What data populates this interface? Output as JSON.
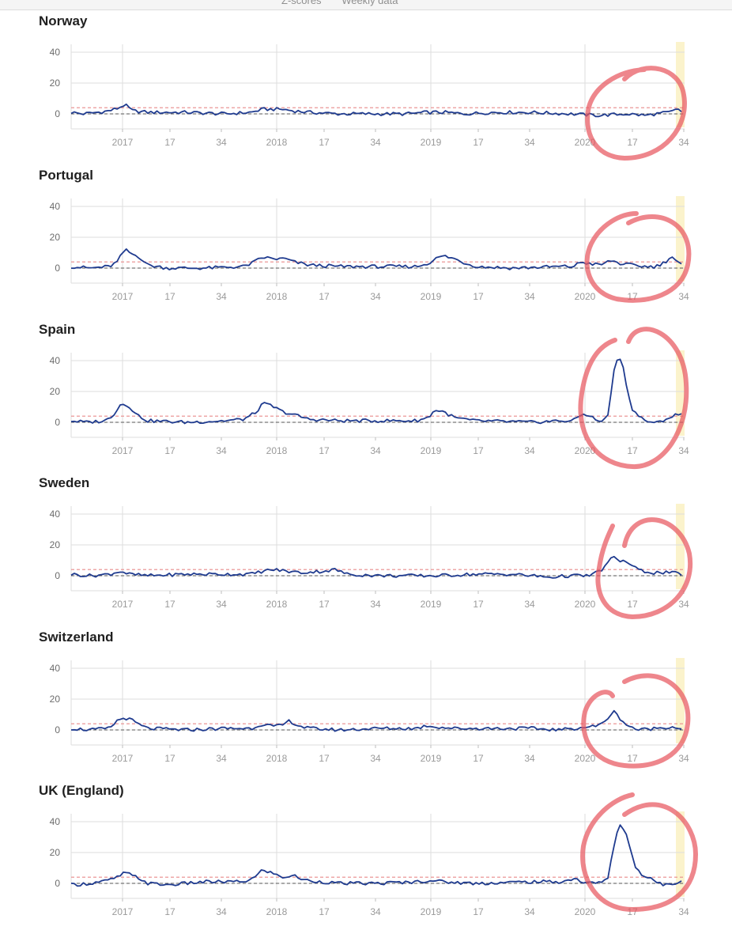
{
  "topbar": {
    "items": [
      "Z-scores",
      "Weekly data"
    ]
  },
  "colors": {
    "series": "#1f3b8f",
    "baseline": "#333333",
    "threshold": "#e88a8a",
    "highlight": "#fbf3cc",
    "grid": "#dedede",
    "annotation": "#e8575f"
  },
  "chart_data": [
    {
      "type": "line",
      "title": "Norway",
      "x_ticks": [
        "2017",
        "17",
        "34",
        "2018",
        "17",
        "34",
        "2019",
        "17",
        "34",
        "2020",
        "17",
        "34"
      ],
      "y_ticks": [
        "0",
        "20",
        "40"
      ],
      "ylim": [
        -10,
        45
      ],
      "threshold": 4,
      "weeks": 190,
      "keypoints": [
        [
          0,
          1
        ],
        [
          6,
          0
        ],
        [
          14,
          1
        ],
        [
          20,
          2
        ],
        [
          24,
          3.5
        ],
        [
          28,
          6
        ],
        [
          32,
          2
        ],
        [
          40,
          1
        ],
        [
          60,
          1
        ],
        [
          80,
          0
        ],
        [
          94,
          1
        ],
        [
          100,
          3
        ],
        [
          110,
          3
        ],
        [
          116,
          2
        ],
        [
          124,
          1
        ],
        [
          140,
          0
        ],
        [
          160,
          0
        ],
        [
          175,
          0
        ],
        [
          186,
          1
        ],
        [
          194,
          1
        ],
        [
          205,
          0
        ],
        [
          220,
          1
        ],
        [
          240,
          1
        ],
        [
          260,
          0
        ],
        [
          275,
          -1
        ],
        [
          290,
          0
        ],
        [
          300,
          -1
        ],
        [
          305,
          0
        ],
        [
          312,
          1
        ],
        [
          317,
          3
        ],
        [
          320,
          0
        ]
      ],
      "annotations": [
        {
          "label": "circle"
        }
      ]
    },
    {
      "type": "line",
      "title": "Portugal",
      "x_ticks": [
        "2017",
        "17",
        "34",
        "2018",
        "17",
        "34",
        "2019",
        "17",
        "34",
        "2020",
        "17",
        "34"
      ],
      "y_ticks": [
        "0",
        "20",
        "40"
      ],
      "ylim": [
        -10,
        45
      ],
      "threshold": 4,
      "weeks": 190,
      "keypoints": [
        [
          0,
          1
        ],
        [
          10,
          0
        ],
        [
          20,
          1
        ],
        [
          24,
          4
        ],
        [
          28,
          12
        ],
        [
          32,
          9
        ],
        [
          36,
          7
        ],
        [
          40,
          2
        ],
        [
          50,
          0
        ],
        [
          70,
          0
        ],
        [
          90,
          1
        ],
        [
          94,
          3
        ],
        [
          100,
          7
        ],
        [
          106,
          6
        ],
        [
          112,
          6
        ],
        [
          116,
          4
        ],
        [
          124,
          2
        ],
        [
          140,
          1
        ],
        [
          160,
          1
        ],
        [
          180,
          1
        ],
        [
          186,
          3
        ],
        [
          190,
          6
        ],
        [
          194,
          8
        ],
        [
          200,
          6
        ],
        [
          206,
          3
        ],
        [
          212,
          1
        ],
        [
          230,
          0
        ],
        [
          255,
          1
        ],
        [
          262,
          1
        ],
        [
          266,
          4
        ],
        [
          270,
          3
        ],
        [
          276,
          2
        ],
        [
          282,
          5
        ],
        [
          286,
          3
        ],
        [
          292,
          2
        ],
        [
          300,
          1
        ],
        [
          305,
          1
        ],
        [
          310,
          4
        ],
        [
          313,
          8
        ],
        [
          317,
          3
        ],
        [
          320,
          1
        ]
      ],
      "annotations": [
        {
          "label": "circle"
        }
      ]
    },
    {
      "type": "line",
      "title": "Spain",
      "x_ticks": [
        "2017",
        "17",
        "34",
        "2018",
        "17",
        "34",
        "2019",
        "17",
        "34",
        "2020",
        "17",
        "34"
      ],
      "y_ticks": [
        "0",
        "20",
        "40"
      ],
      "ylim": [
        -10,
        45
      ],
      "threshold": 4,
      "weeks": 190,
      "keypoints": [
        [
          0,
          1
        ],
        [
          8,
          0
        ],
        [
          18,
          1
        ],
        [
          22,
          5
        ],
        [
          26,
          12
        ],
        [
          30,
          11
        ],
        [
          34,
          5
        ],
        [
          40,
          1
        ],
        [
          60,
          0
        ],
        [
          80,
          1
        ],
        [
          90,
          2
        ],
        [
          96,
          6
        ],
        [
          100,
          12
        ],
        [
          104,
          11
        ],
        [
          110,
          7
        ],
        [
          116,
          5
        ],
        [
          124,
          2
        ],
        [
          140,
          1
        ],
        [
          160,
          1
        ],
        [
          180,
          1
        ],
        [
          186,
          3
        ],
        [
          190,
          8
        ],
        [
          194,
          7
        ],
        [
          200,
          3
        ],
        [
          210,
          1
        ],
        [
          240,
          0
        ],
        [
          255,
          1
        ],
        [
          262,
          1
        ],
        [
          266,
          5
        ],
        [
          270,
          5
        ],
        [
          274,
          1
        ],
        [
          278,
          1
        ],
        [
          280,
          5
        ],
        [
          284,
          40
        ],
        [
          286,
          43
        ],
        [
          288,
          35
        ],
        [
          292,
          10
        ],
        [
          296,
          4
        ],
        [
          300,
          1
        ],
        [
          304,
          -1
        ],
        [
          308,
          1
        ],
        [
          312,
          3
        ],
        [
          316,
          5
        ],
        [
          319,
          5
        ],
        [
          320,
          3
        ]
      ],
      "annotations": [
        {
          "label": "circle"
        }
      ]
    },
    {
      "type": "line",
      "title": "Sweden",
      "x_ticks": [
        "2017",
        "17",
        "34",
        "2018",
        "17",
        "34",
        "2019",
        "17",
        "34",
        "2020",
        "17",
        "34"
      ],
      "y_ticks": [
        "0",
        "20",
        "40"
      ],
      "ylim": [
        -10,
        45
      ],
      "threshold": 4,
      "weeks": 190,
      "keypoints": [
        [
          0,
          1
        ],
        [
          10,
          0
        ],
        [
          20,
          1
        ],
        [
          26,
          3
        ],
        [
          30,
          1
        ],
        [
          40,
          0
        ],
        [
          60,
          1
        ],
        [
          80,
          1
        ],
        [
          94,
          1
        ],
        [
          100,
          3
        ],
        [
          106,
          4
        ],
        [
          112,
          3
        ],
        [
          120,
          2
        ],
        [
          132,
          3
        ],
        [
          138,
          4
        ],
        [
          144,
          1
        ],
        [
          160,
          0
        ],
        [
          175,
          0
        ],
        [
          190,
          0
        ],
        [
          210,
          1
        ],
        [
          230,
          1
        ],
        [
          250,
          -1
        ],
        [
          260,
          0
        ],
        [
          266,
          0
        ],
        [
          270,
          0
        ],
        [
          274,
          2
        ],
        [
          278,
          5
        ],
        [
          282,
          12
        ],
        [
          286,
          10
        ],
        [
          290,
          9
        ],
        [
          294,
          5
        ],
        [
          298,
          3
        ],
        [
          304,
          2
        ],
        [
          312,
          2
        ],
        [
          320,
          1
        ]
      ],
      "annotations": [
        {
          "label": "circle"
        }
      ]
    },
    {
      "type": "line",
      "title": "Switzerland",
      "x_ticks": [
        "2017",
        "17",
        "34",
        "2018",
        "17",
        "34",
        "2019",
        "17",
        "34",
        "2020",
        "17",
        "34"
      ],
      "y_ticks": [
        "0",
        "20",
        "40"
      ],
      "ylim": [
        -10,
        45
      ],
      "threshold": 4,
      "weeks": 190,
      "keypoints": [
        [
          0,
          1
        ],
        [
          10,
          0
        ],
        [
          20,
          1
        ],
        [
          24,
          6
        ],
        [
          28,
          8
        ],
        [
          32,
          6
        ],
        [
          36,
          3
        ],
        [
          40,
          1
        ],
        [
          60,
          0
        ],
        [
          80,
          1
        ],
        [
          94,
          1
        ],
        [
          100,
          4
        ],
        [
          106,
          2
        ],
        [
          110,
          3
        ],
        [
          114,
          6
        ],
        [
          118,
          3
        ],
        [
          124,
          1
        ],
        [
          140,
          0
        ],
        [
          160,
          1
        ],
        [
          180,
          1
        ],
        [
          186,
          3
        ],
        [
          190,
          2
        ],
        [
          200,
          1
        ],
        [
          220,
          1
        ],
        [
          240,
          1
        ],
        [
          255,
          0
        ],
        [
          262,
          1
        ],
        [
          270,
          2
        ],
        [
          276,
          3
        ],
        [
          280,
          8
        ],
        [
          283,
          12
        ],
        [
          286,
          8
        ],
        [
          290,
          3
        ],
        [
          296,
          0
        ],
        [
          304,
          1
        ],
        [
          312,
          2
        ],
        [
          320,
          1
        ]
      ],
      "annotations": [
        {
          "label": "circle"
        }
      ]
    },
    {
      "type": "line",
      "title": "UK (England)",
      "x_ticks": [
        "2017",
        "17",
        "34",
        "2018",
        "17",
        "34",
        "2019",
        "17",
        "34",
        "2020",
        "17",
        "34"
      ],
      "y_ticks": [
        "0",
        "20",
        "40"
      ],
      "ylim": [
        -10,
        45
      ],
      "threshold": 4,
      "weeks": 190,
      "keypoints": [
        [
          0,
          -1
        ],
        [
          10,
          0
        ],
        [
          20,
          2
        ],
        [
          24,
          4
        ],
        [
          28,
          7
        ],
        [
          32,
          5
        ],
        [
          36,
          3
        ],
        [
          40,
          0
        ],
        [
          50,
          -1
        ],
        [
          70,
          1
        ],
        [
          90,
          1
        ],
        [
          96,
          4
        ],
        [
          100,
          9
        ],
        [
          104,
          7
        ],
        [
          110,
          4
        ],
        [
          116,
          5
        ],
        [
          122,
          2
        ],
        [
          140,
          0
        ],
        [
          160,
          0
        ],
        [
          180,
          1
        ],
        [
          188,
          2
        ],
        [
          194,
          1
        ],
        [
          210,
          0
        ],
        [
          240,
          1
        ],
        [
          256,
          1
        ],
        [
          260,
          2
        ],
        [
          262,
          4
        ],
        [
          266,
          1
        ],
        [
          270,
          0
        ],
        [
          276,
          1
        ],
        [
          280,
          3
        ],
        [
          284,
          30
        ],
        [
          287,
          39
        ],
        [
          290,
          30
        ],
        [
          294,
          12
        ],
        [
          298,
          5
        ],
        [
          304,
          2
        ],
        [
          308,
          -1
        ],
        [
          312,
          0
        ],
        [
          318,
          1
        ],
        [
          320,
          5
        ]
      ],
      "annotations": [
        {
          "label": "circle"
        }
      ]
    }
  ]
}
